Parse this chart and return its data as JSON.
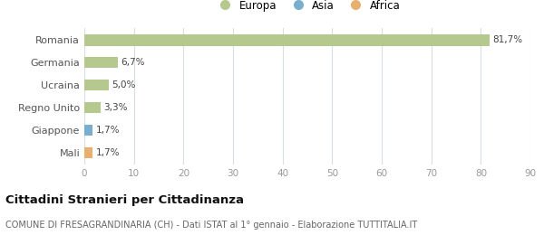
{
  "categories": [
    "Romania",
    "Germania",
    "Ucraina",
    "Regno Unito",
    "Giappone",
    "Mali"
  ],
  "values": [
    81.7,
    6.7,
    5.0,
    3.3,
    1.7,
    1.7
  ],
  "labels": [
    "81,7%",
    "6,7%",
    "5,0%",
    "3,3%",
    "1,7%",
    "1,7%"
  ],
  "colors": [
    "#b5c98e",
    "#b5c98e",
    "#b5c98e",
    "#b5c98e",
    "#7aaecf",
    "#e8b06e"
  ],
  "legend_items": [
    {
      "label": "Europa",
      "color": "#b5c98e"
    },
    {
      "label": "Asia",
      "color": "#7aaecf"
    },
    {
      "label": "Africa",
      "color": "#e8b06e"
    }
  ],
  "xlim": [
    0,
    90
  ],
  "xticks": [
    0,
    10,
    20,
    30,
    40,
    50,
    60,
    70,
    80,
    90
  ],
  "title": "Cittadini Stranieri per Cittadinanza",
  "subtitle": "COMUNE DI FRESAGRANDINARIA (CH) - Dati ISTAT al 1° gennaio - Elaborazione TUTTITALIA.IT",
  "background_color": "#ffffff",
  "grid_color": "#d8dde6",
  "bar_height": 0.5
}
